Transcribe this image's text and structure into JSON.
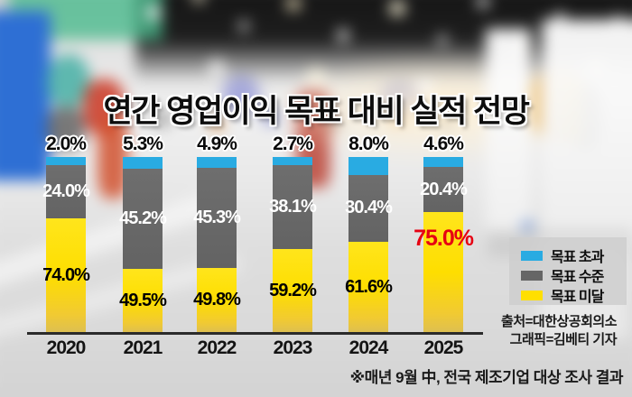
{
  "title": "연간 영업이익 목표 대비 실적 전망",
  "footnote": "※매년 9월 中, 전국 제조기업 대상 조사 결과",
  "credits": {
    "source": "출처=대한상공회의소",
    "graphic": "그래픽=김베티 기자"
  },
  "legend": {
    "position": "right",
    "items": [
      {
        "label": "목표 초과",
        "color": "#29ABE2"
      },
      {
        "label": "목표 수준",
        "color": "#666666"
      },
      {
        "label": "목표 미달",
        "color": "#FFDF00"
      }
    ]
  },
  "colors": {
    "exceed_blue": "#29ABE2",
    "meet_gray": "#666666",
    "below_yellow": "#FFDF00",
    "highlight_red": "#E60012",
    "axis": "#2B2B2B",
    "title_text": "#0D0D0D"
  },
  "chart_data": {
    "type": "bar",
    "stacked": true,
    "unit": "%",
    "ylim": [
      0,
      100
    ],
    "grid": false,
    "legend_position": "right",
    "title": "연간 영업이익 목표 대비 실적 전망",
    "categories": [
      "2020",
      "2021",
      "2022",
      "2023",
      "2024",
      "2025"
    ],
    "series": [
      {
        "name": "목표 초과",
        "color": "#29ABE2",
        "values": [
          2.0,
          5.3,
          4.9,
          2.7,
          8.0,
          4.6
        ]
      },
      {
        "name": "목표 수준",
        "color": "#666666",
        "values": [
          24.0,
          45.2,
          45.3,
          38.1,
          30.4,
          20.4
        ]
      },
      {
        "name": "목표 미달",
        "color": "#FFDF00",
        "values": [
          74.0,
          49.5,
          49.8,
          59.2,
          61.6,
          75.0
        ]
      }
    ],
    "highlight": {
      "category": "2025",
      "series": "목표 미달",
      "value": 75.0,
      "color": "#E60012"
    }
  }
}
